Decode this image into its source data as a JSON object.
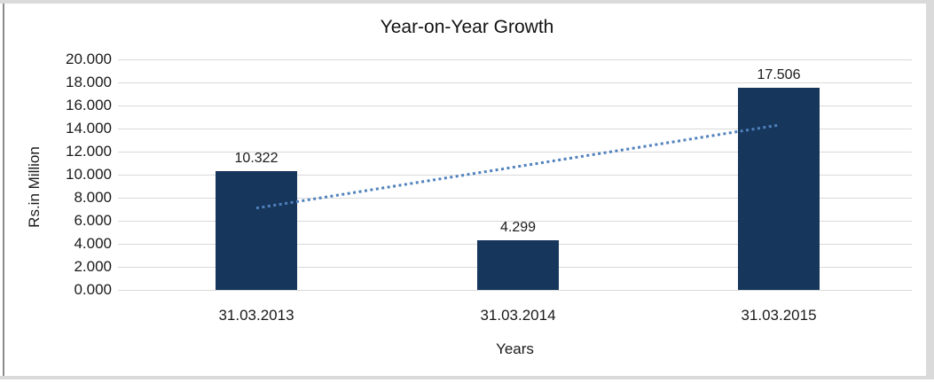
{
  "chart_data": {
    "type": "bar",
    "title": "Year-on-Year Growth",
    "xlabel": "Years",
    "ylabel": "Rs.in Million",
    "categories": [
      "31.03.2013",
      "31.03.2014",
      "31.03.2015"
    ],
    "values": [
      10.322,
      4.299,
      17.506
    ],
    "data_labels": [
      "10.322",
      "4.299",
      "17.506"
    ],
    "ylim": [
      0,
      20
    ],
    "ytick_step": 2,
    "ytick_labels": [
      "0.000",
      "2.000",
      "4.000",
      "6.000",
      "8.000",
      "10.000",
      "12.000",
      "14.000",
      "16.000",
      "18.000",
      "20.000"
    ],
    "grid": true,
    "legend_position": "none",
    "bar_color": "#16365C",
    "gridline_color": "#D9D9D9",
    "text_color": "#1A1A1A",
    "trendline": {
      "type": "linear",
      "style": "dotted",
      "color": "#4F81BD",
      "start_value": 7.1,
      "end_value": 14.3
    }
  }
}
